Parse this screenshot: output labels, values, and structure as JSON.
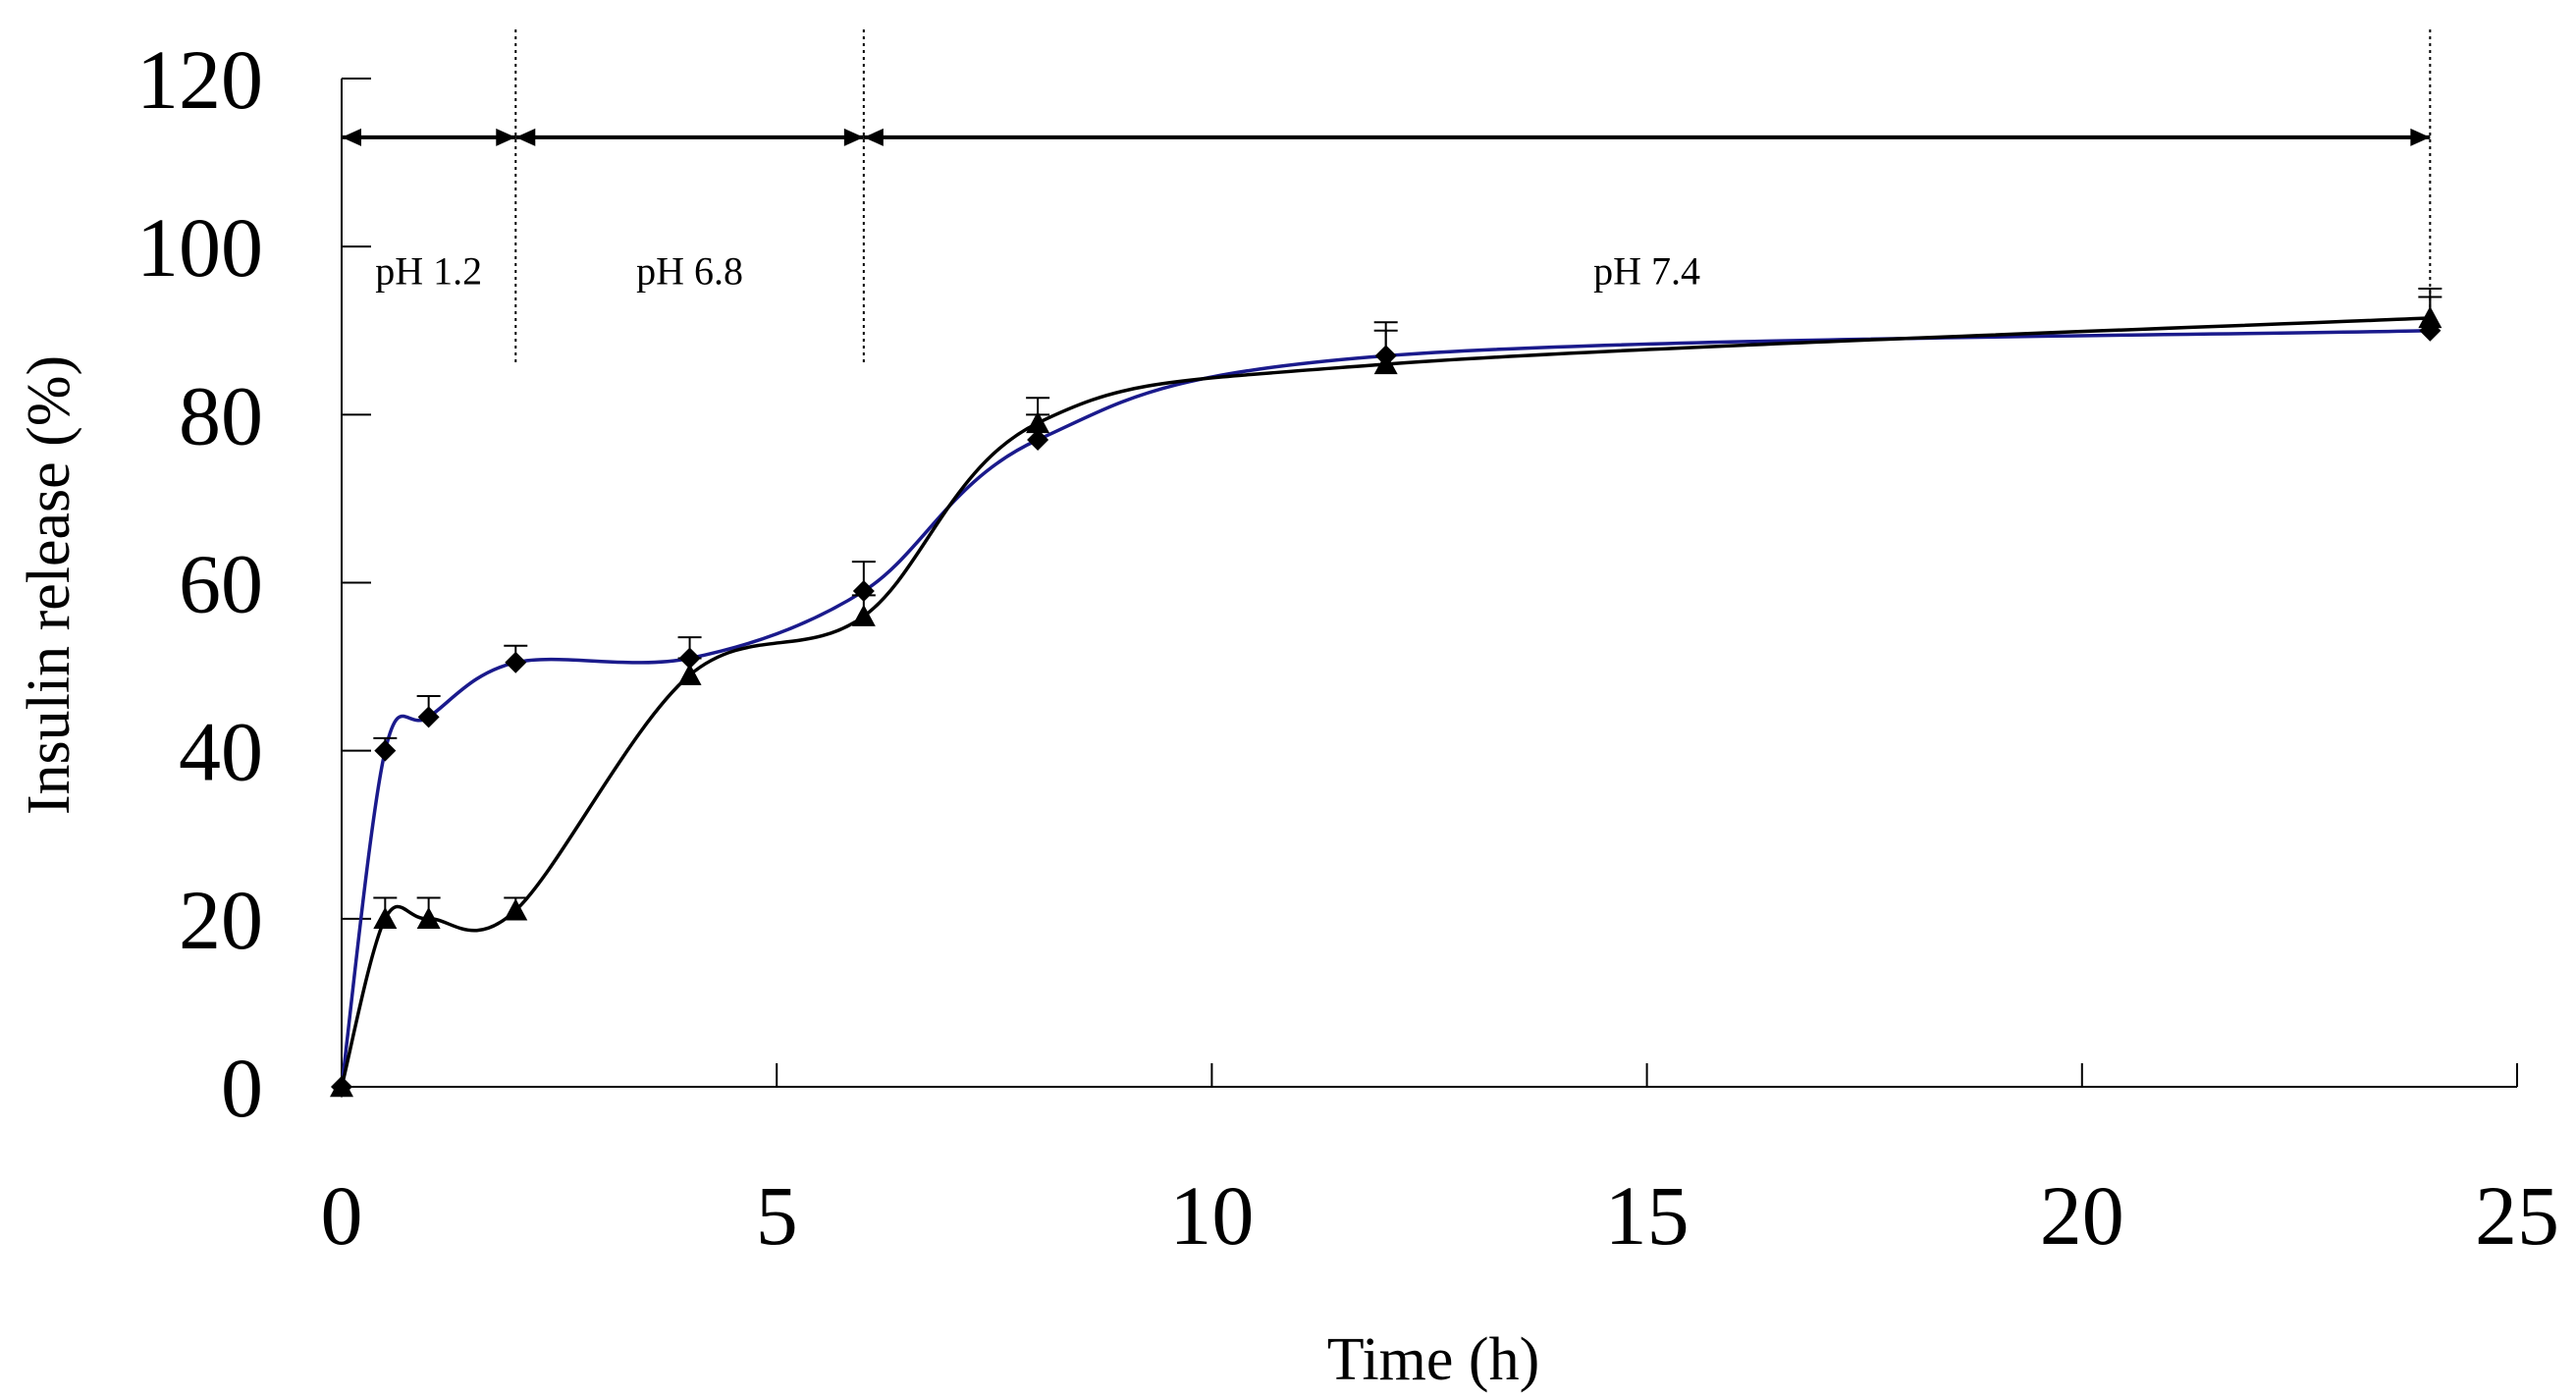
{
  "chart_data": {
    "type": "line",
    "title": "",
    "xlabel": "Time (h)",
    "ylabel": "Insulin release (%)",
    "xlim": [
      0,
      25
    ],
    "ylim": [
      0,
      120
    ],
    "x_ticks": [
      0,
      5,
      10,
      15,
      20,
      25
    ],
    "y_ticks": [
      0,
      20,
      40,
      60,
      80,
      100,
      120
    ],
    "grid": false,
    "legend": "none",
    "series": [
      {
        "name": "diamond series",
        "marker": "diamond",
        "color": "#1a1a8c",
        "x": [
          0,
          0.5,
          1,
          2,
          4,
          6,
          8,
          12,
          24
        ],
        "y": [
          0,
          40,
          44,
          50.5,
          51,
          59,
          77,
          87,
          90
        ],
        "error": [
          0,
          1.5,
          2.5,
          2,
          2.5,
          3.5,
          3,
          4,
          4
        ]
      },
      {
        "name": "triangle series",
        "marker": "triangle",
        "color": "#000000",
        "x": [
          0,
          0.5,
          1,
          2,
          4,
          6,
          8,
          12,
          24
        ],
        "y": [
          0,
          20,
          20,
          21,
          49,
          56,
          79,
          86,
          91.5
        ],
        "error": [
          0,
          2.5,
          2.5,
          1.5,
          2,
          2.5,
          3,
          4,
          3.5
        ]
      }
    ],
    "regions": [
      {
        "label": "pH 1.2",
        "x_start": 0,
        "x_end": 2
      },
      {
        "label": "pH 6.8",
        "x_start": 2,
        "x_end": 6
      },
      {
        "label": "pH 7.4",
        "x_start": 6,
        "x_end": 24
      }
    ],
    "region_arrow_y": 113,
    "region_label_y": 95.5
  }
}
